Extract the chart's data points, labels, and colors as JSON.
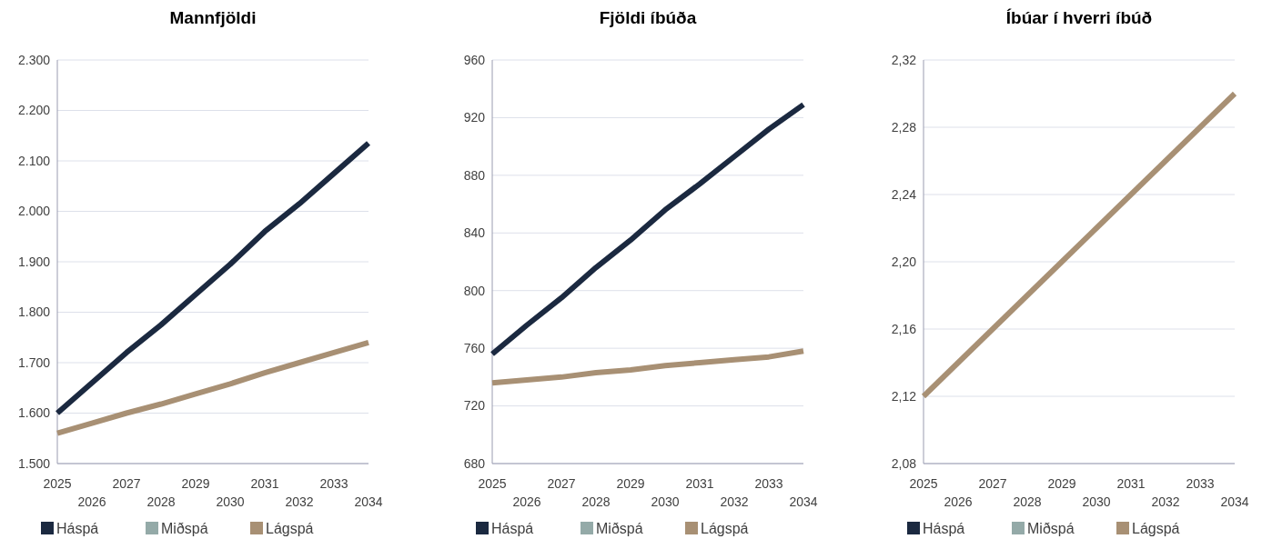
{
  "chart_data": [
    {
      "type": "line",
      "title": "Mannfjöldi",
      "categories": [
        "2025",
        "2026",
        "2027",
        "2028",
        "2029",
        "2030",
        "2031",
        "2032",
        "2033",
        "2034"
      ],
      "ylim": [
        1500,
        2300
      ],
      "yticks": [
        {
          "value": 1500,
          "label": "1.500"
        },
        {
          "value": 1600,
          "label": "1.600"
        },
        {
          "value": 1700,
          "label": "1.700"
        },
        {
          "value": 1800,
          "label": "1.800"
        },
        {
          "value": 1900,
          "label": "1.900"
        },
        {
          "value": 2000,
          "label": "2.000"
        },
        {
          "value": 2100,
          "label": "2.100"
        },
        {
          "value": 2200,
          "label": "2.200"
        },
        {
          "value": 2300,
          "label": "2.300"
        }
      ],
      "grid": "y",
      "legend": "bottom",
      "series": [
        {
          "name": "Háspá",
          "color": "#1b2940",
          "values": [
            1600,
            1660,
            1720,
            1775,
            1835,
            1895,
            1960,
            2015,
            2075,
            2135
          ]
        },
        {
          "name": "Miðspá",
          "color": "#94aaa8",
          "values": [
            null,
            null,
            null,
            null,
            null,
            null,
            null,
            null,
            null,
            null
          ]
        },
        {
          "name": "Lágspá",
          "color": "#a89074",
          "values": [
            1560,
            1580,
            1600,
            1618,
            1638,
            1658,
            1680,
            1700,
            1720,
            1740
          ]
        }
      ]
    },
    {
      "type": "line",
      "title": "Fjöldi íbúða",
      "categories": [
        "2025",
        "2026",
        "2027",
        "2028",
        "2029",
        "2030",
        "2031",
        "2032",
        "2033",
        "2034"
      ],
      "ylim": [
        680,
        960
      ],
      "yticks": [
        680,
        720,
        760,
        800,
        840,
        880,
        920,
        960
      ],
      "grid": "y",
      "legend": "bottom",
      "series": [
        {
          "name": "Háspá",
          "color": "#1b2940",
          "values": [
            756,
            776,
            795,
            816,
            835,
            856,
            874,
            893,
            912,
            929
          ]
        },
        {
          "name": "Miðspá",
          "color": "#94aaa8",
          "values": [
            null,
            null,
            null,
            null,
            null,
            null,
            null,
            null,
            null,
            null
          ]
        },
        {
          "name": "Lágspá",
          "color": "#a89074",
          "values": [
            736,
            738,
            740,
            743,
            745,
            748,
            750,
            752,
            754,
            758
          ]
        }
      ]
    },
    {
      "type": "line",
      "title": "Íbúar í hverri íbúð",
      "categories": [
        "2025",
        "2026",
        "2027",
        "2028",
        "2029",
        "2030",
        "2031",
        "2032",
        "2033",
        "2034"
      ],
      "ylim": [
        2.08,
        2.32
      ],
      "yticks": [
        {
          "value": 2.08,
          "label": "2,08"
        },
        {
          "value": 2.12,
          "label": "2,12"
        },
        {
          "value": 2.16,
          "label": "2,16"
        },
        {
          "value": 2.2,
          "label": "2,20"
        },
        {
          "value": 2.24,
          "label": "2,24"
        },
        {
          "value": 2.28,
          "label": "2,28"
        },
        {
          "value": 2.32,
          "label": "2,32"
        }
      ],
      "grid": "y",
      "legend": "bottom",
      "series": [
        {
          "name": "Háspá",
          "color": "#1b2940",
          "values": [
            null,
            null,
            null,
            null,
            null,
            null,
            null,
            null,
            null,
            null
          ]
        },
        {
          "name": "Miðspá",
          "color": "#94aaa8",
          "values": [
            null,
            null,
            null,
            null,
            null,
            null,
            null,
            null,
            null,
            null
          ]
        },
        {
          "name": "Lágspá",
          "color": "#a89074",
          "values": [
            2.12,
            2.14,
            2.16,
            2.18,
            2.2,
            2.22,
            2.24,
            2.26,
            2.28,
            2.3
          ]
        }
      ]
    }
  ]
}
